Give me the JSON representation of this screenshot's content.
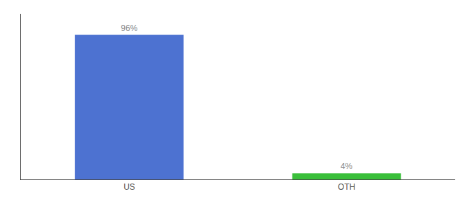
{
  "chart_data": {
    "type": "bar",
    "categories": [
      "US",
      "OTH"
    ],
    "values": [
      96,
      4
    ],
    "value_labels": [
      "96%",
      "4%"
    ],
    "data_labels": true,
    "colors": [
      "#4d72d1",
      "#3abf3a"
    ],
    "ylim": [
      0,
      110
    ],
    "grid": false,
    "tick_labels": "x"
  }
}
